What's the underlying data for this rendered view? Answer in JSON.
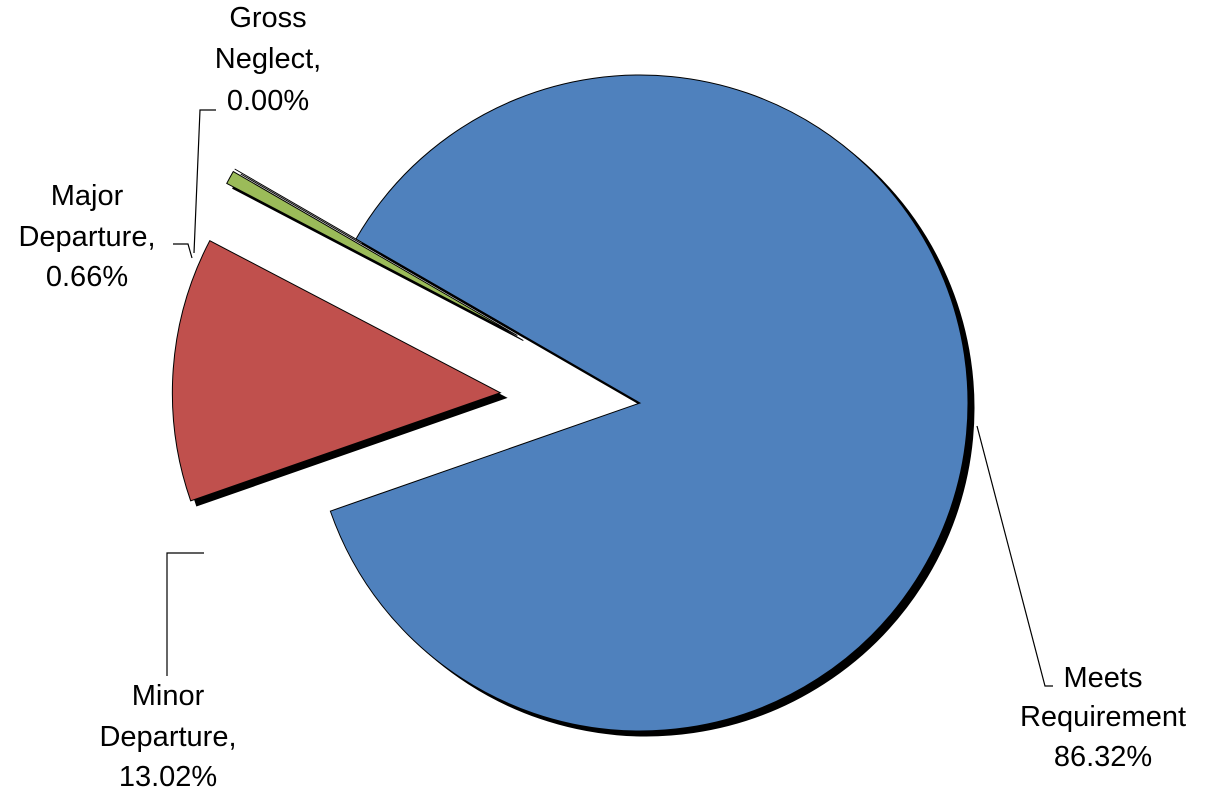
{
  "chart_data": {
    "type": "pie",
    "title": "",
    "slices": [
      {
        "name": "Meets Requirement",
        "value": 86.32,
        "label_lines": [
          "Meets",
          "Requirement",
          "86.32%"
        ],
        "color": "#4f81bd",
        "exploded": false
      },
      {
        "name": "Minor Departure",
        "value": 13.02,
        "label_lines": [
          "Minor",
          "Departure,",
          "13.02%"
        ],
        "color": "#c0504d",
        "exploded": true
      },
      {
        "name": "Major Departure",
        "value": 0.66,
        "label_lines": [
          "Major",
          "Departure,",
          "0.66%"
        ],
        "color": "#9bbb59",
        "exploded": true
      },
      {
        "name": "Gross Neglect",
        "value": 0.0,
        "label_lines": [
          "Gross",
          "Neglect,",
          "0.00%"
        ],
        "color": "#8064a2",
        "exploded": true
      }
    ],
    "start_angle_deg": -150,
    "direction": "clockwise",
    "legend": "none",
    "data_labels": "outside-with-leader-lines"
  }
}
